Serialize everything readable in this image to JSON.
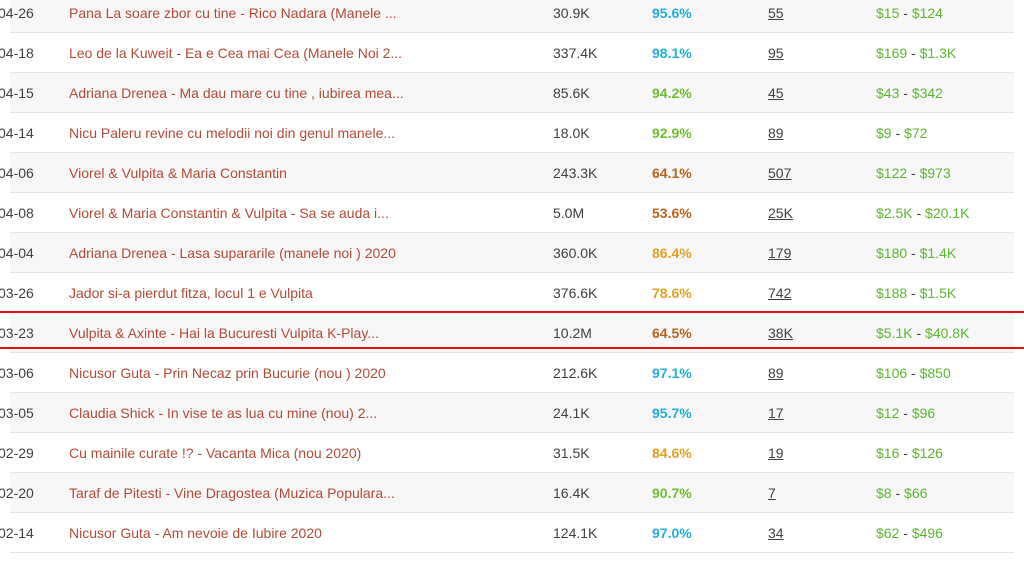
{
  "colors": {
    "pct_high": "#23b0d8",
    "pct_good": "#6fbf30",
    "pct_mid": "#e0a020",
    "pct_low": "#b5651d",
    "title": "#b34a3a",
    "earnings": "#5cb531",
    "highlight": "#d9141b"
  },
  "rows": [
    {
      "date": "04-26",
      "title": "Pana La soare zbor cu tine - Rico Nadara (Manele ...",
      "views": "30.9K",
      "pct": "95.6%",
      "pct_color": "#23b0d8",
      "comments": "55",
      "earnings_low": "$15",
      "earnings_high": "$124"
    },
    {
      "date": "04-18",
      "title": "Leo de la Kuweit - Ea e Cea mai Cea (Manele Noi 2...",
      "views": "337.4K",
      "pct": "98.1%",
      "pct_color": "#23b0d8",
      "comments": "95",
      "earnings_low": "$169",
      "earnings_high": "$1.3K"
    },
    {
      "date": "04-15",
      "title": "Adriana Drenea - Ma dau mare cu tine , iubirea mea...",
      "views": "85.6K",
      "pct": "94.2%",
      "pct_color": "#6fbf30",
      "comments": "45",
      "earnings_low": "$43",
      "earnings_high": "$342"
    },
    {
      "date": "04-14",
      "title": "Nicu Paleru revine cu melodii noi din genul manele...",
      "views": "18.0K",
      "pct": "92.9%",
      "pct_color": "#6fbf30",
      "comments": "89",
      "earnings_low": "$9",
      "earnings_high": "$72"
    },
    {
      "date": "04-06",
      "title": "Viorel & Vulpita & Maria Constantin",
      "views": "243.3K",
      "pct": "64.1%",
      "pct_color": "#b5651d",
      "comments": "507",
      "earnings_low": "$122",
      "earnings_high": "$973"
    },
    {
      "date": "04-08",
      "title": "Viorel & Maria Constantin & Vulpita - Sa se auda i...",
      "views": "5.0M",
      "pct": "53.6%",
      "pct_color": "#b5651d",
      "comments": "25K",
      "earnings_low": "$2.5K",
      "earnings_high": "$20.1K"
    },
    {
      "date": "04-04",
      "title": "Adriana Drenea - Lasa supararile (manele noi ) 2020",
      "views": "360.0K",
      "pct": "86.4%",
      "pct_color": "#e0a020",
      "comments": "179",
      "earnings_low": "$180",
      "earnings_high": "$1.4K"
    },
    {
      "date": "03-26",
      "title": "Jador si-a pierdut fitza, locul 1 e Vulpita",
      "views": "376.6K",
      "pct": "78.6%",
      "pct_color": "#e0a020",
      "comments": "742",
      "earnings_low": "$188",
      "earnings_high": "$1.5K"
    },
    {
      "date": "03-23",
      "title": "Vulpita & Axinte - Hai la Bucuresti Vulpita K-Play...",
      "views": "10.2M",
      "pct": "64.5%",
      "pct_color": "#b5651d",
      "comments": "38K",
      "earnings_low": "$5.1K",
      "earnings_high": "$40.8K"
    },
    {
      "date": "03-06",
      "title": "Nicusor Guta - Prin Necaz prin Bucurie (nou ) 2020",
      "views": "212.6K",
      "pct": "97.1%",
      "pct_color": "#23b0d8",
      "comments": "89",
      "earnings_low": "$106",
      "earnings_high": "$850"
    },
    {
      "date": "03-05",
      "title": "Claudia Shick - In vise te as lua cu mine (nou) 2...",
      "views": "24.1K",
      "pct": "95.7%",
      "pct_color": "#23b0d8",
      "comments": "17",
      "earnings_low": "$12",
      "earnings_high": "$96"
    },
    {
      "date": "02-29",
      "title": "Cu mainile curate !? - Vacanta Mica (nou 2020)",
      "views": "31.5K",
      "pct": "84.6%",
      "pct_color": "#e0a020",
      "comments": "19",
      "earnings_low": "$16",
      "earnings_high": "$126"
    },
    {
      "date": "02-20",
      "title": "Taraf de Pitesti - Vine Dragostea (Muzica Populara...",
      "views": "16.4K",
      "pct": "90.7%",
      "pct_color": "#6fbf30",
      "comments": "7",
      "earnings_low": "$8",
      "earnings_high": "$66"
    },
    {
      "date": "02-14",
      "title": "Nicusor Guta - Am nevoie de Iubire 2020",
      "views": "124.1K",
      "pct": "97.0%",
      "pct_color": "#23b0d8",
      "comments": "34",
      "earnings_low": "$62",
      "earnings_high": "$496"
    }
  ]
}
